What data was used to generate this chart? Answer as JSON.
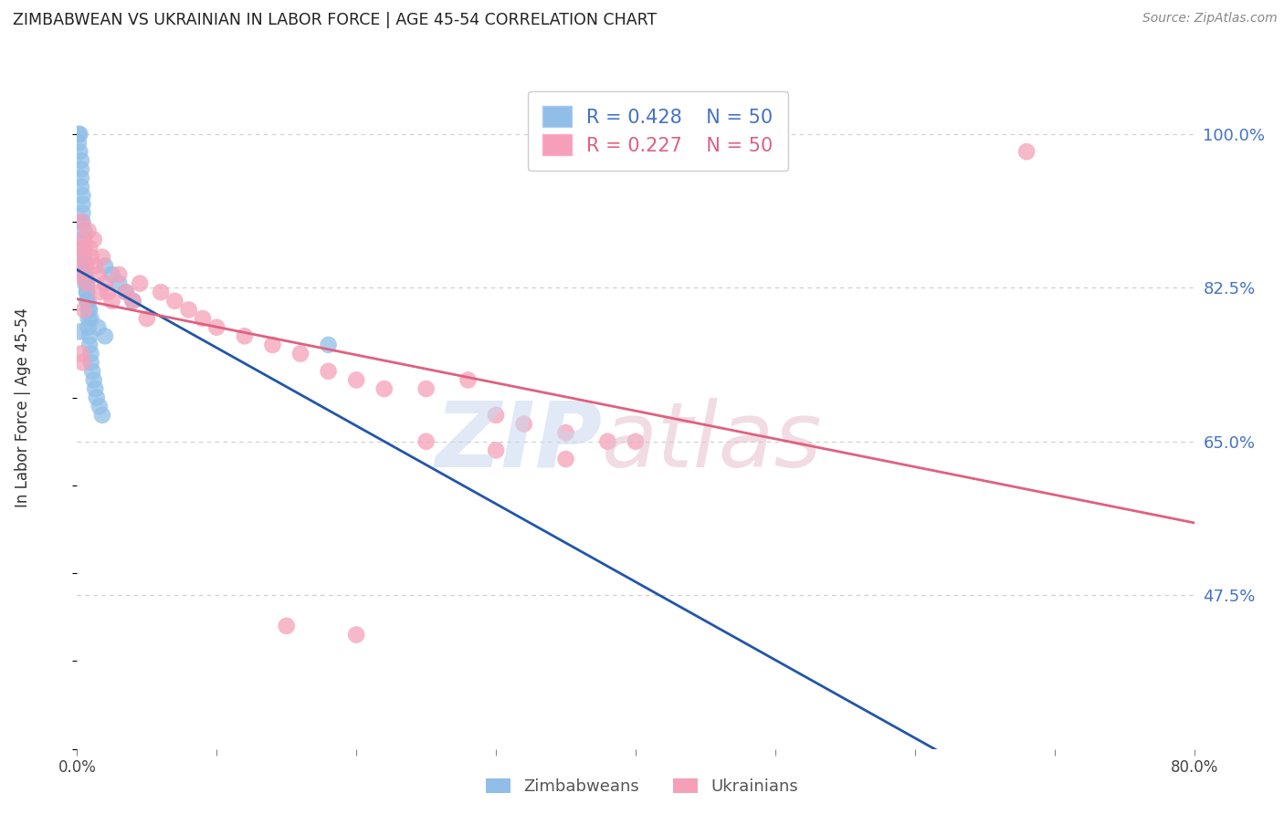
{
  "title": "ZIMBABWEAN VS UKRAINIAN IN LABOR FORCE | AGE 45-54 CORRELATION CHART",
  "source": "Source: ZipAtlas.com",
  "ylabel": "In Labor Force | Age 45-54",
  "xlim": [
    0.0,
    0.8
  ],
  "ylim": [
    0.3,
    1.06
  ],
  "xticks": [
    0.0,
    0.1,
    0.2,
    0.3,
    0.4,
    0.5,
    0.6,
    0.7,
    0.8
  ],
  "xticklabels": [
    "0.0%",
    "",
    "",
    "",
    "",
    "",
    "",
    "",
    "80.0%"
  ],
  "ytick_positions": [
    1.0,
    0.825,
    0.65,
    0.475
  ],
  "ytick_labels": [
    "100.0%",
    "82.5%",
    "65.0%",
    "47.5%"
  ],
  "blue_color": "#90BEE8",
  "blue_line_color": "#2255AA",
  "pink_color": "#F5A0B8",
  "pink_line_color": "#E06080",
  "legend_R_blue": "R = 0.428",
  "legend_N_blue": "N = 50",
  "legend_R_pink": "R = 0.227",
  "legend_N_pink": "N = 50",
  "watermark_zip": "ZIP",
  "watermark_atlas": "atlas",
  "grid_color": "#CCCCCC",
  "blue_scatter_x": [
    0.001,
    0.001,
    0.002,
    0.002,
    0.003,
    0.003,
    0.003,
    0.003,
    0.004,
    0.004,
    0.004,
    0.004,
    0.005,
    0.005,
    0.005,
    0.005,
    0.006,
    0.006,
    0.006,
    0.007,
    0.007,
    0.007,
    0.008,
    0.008,
    0.008,
    0.009,
    0.009,
    0.01,
    0.01,
    0.011,
    0.012,
    0.013,
    0.014,
    0.016,
    0.018,
    0.02,
    0.025,
    0.03,
    0.035,
    0.04,
    0.005,
    0.006,
    0.007,
    0.008,
    0.009,
    0.01,
    0.015,
    0.02,
    0.002,
    0.18
  ],
  "blue_scatter_y": [
    1.0,
    0.99,
    1.0,
    0.98,
    0.97,
    0.96,
    0.95,
    0.94,
    0.93,
    0.92,
    0.91,
    0.9,
    0.89,
    0.88,
    0.87,
    0.86,
    0.855,
    0.85,
    0.84,
    0.83,
    0.82,
    0.81,
    0.8,
    0.79,
    0.78,
    0.77,
    0.76,
    0.75,
    0.74,
    0.73,
    0.72,
    0.71,
    0.7,
    0.69,
    0.68,
    0.85,
    0.84,
    0.83,
    0.82,
    0.81,
    0.84,
    0.83,
    0.82,
    0.81,
    0.8,
    0.79,
    0.78,
    0.77,
    0.775,
    0.76
  ],
  "pink_scatter_x": [
    0.001,
    0.002,
    0.003,
    0.004,
    0.005,
    0.006,
    0.007,
    0.008,
    0.009,
    0.01,
    0.012,
    0.013,
    0.015,
    0.016,
    0.018,
    0.02,
    0.022,
    0.025,
    0.03,
    0.035,
    0.04,
    0.045,
    0.05,
    0.06,
    0.07,
    0.08,
    0.09,
    0.1,
    0.12,
    0.14,
    0.16,
    0.18,
    0.2,
    0.22,
    0.25,
    0.28,
    0.3,
    0.32,
    0.35,
    0.38,
    0.15,
    0.2,
    0.25,
    0.3,
    0.35,
    0.4,
    0.003,
    0.004,
    0.68,
    0.005
  ],
  "pink_scatter_y": [
    0.84,
    0.86,
    0.9,
    0.88,
    0.87,
    0.85,
    0.83,
    0.89,
    0.87,
    0.86,
    0.88,
    0.85,
    0.84,
    0.82,
    0.86,
    0.83,
    0.82,
    0.81,
    0.84,
    0.82,
    0.81,
    0.83,
    0.79,
    0.82,
    0.81,
    0.8,
    0.79,
    0.78,
    0.77,
    0.76,
    0.75,
    0.73,
    0.72,
    0.71,
    0.71,
    0.72,
    0.68,
    0.67,
    0.66,
    0.65,
    0.44,
    0.43,
    0.65,
    0.64,
    0.63,
    0.65,
    0.75,
    0.74,
    0.98,
    0.8
  ]
}
